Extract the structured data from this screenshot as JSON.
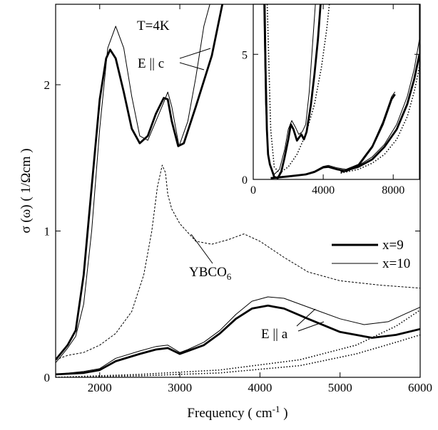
{
  "chart_data": [
    {
      "type": "line",
      "xlabel": "Frequency ( cm",
      "xlabel_sup": "-1",
      "xlabel_close": " )",
      "ylabel": "σ (ω)   ( 1/Ωcm )",
      "xlim": [
        1450,
        6000
      ],
      "ylim": [
        0,
        2.55
      ],
      "x_ticks": [
        2000,
        3000,
        4000,
        5000,
        6000
      ],
      "y_ticks": [
        0,
        1,
        2
      ],
      "grid": false,
      "legend_position": "right",
      "legend": [
        {
          "label": "x=9",
          "style": "thick"
        },
        {
          "label": "x=10",
          "style": "thin"
        }
      ],
      "annotations": {
        "temperature": "T=4K",
        "e_par_c": "E || c",
        "ybco_base": "YBCO",
        "ybco_sub": "6",
        "e_par_a": "E || a"
      },
      "series": [
        {
          "name": "x=9",
          "polarization": "E || c",
          "style": "thick",
          "points": [
            [
              1450,
              0.12
            ],
            [
              1600,
              0.22
            ],
            [
              1700,
              0.32
            ],
            [
              1800,
              0.7
            ],
            [
              1900,
              1.3
            ],
            [
              2000,
              1.9
            ],
            [
              2080,
              2.18
            ],
            [
              2130,
              2.24
            ],
            [
              2200,
              2.18
            ],
            [
              2300,
              1.95
            ],
            [
              2400,
              1.7
            ],
            [
              2500,
              1.6
            ],
            [
              2600,
              1.65
            ],
            [
              2700,
              1.8
            ],
            [
              2800,
              1.91
            ],
            [
              2850,
              1.9
            ],
            [
              2900,
              1.75
            ],
            [
              2980,
              1.58
            ],
            [
              3050,
              1.6
            ],
            [
              3200,
              1.85
            ],
            [
              3400,
              2.2
            ],
            [
              3550,
              2.6
            ]
          ]
        },
        {
          "name": "x=10",
          "polarization": "E || c",
          "style": "thin",
          "points": [
            [
              1450,
              0.1
            ],
            [
              1600,
              0.2
            ],
            [
              1700,
              0.28
            ],
            [
              1800,
              0.5
            ],
            [
              1900,
              1.0
            ],
            [
              2000,
              1.7
            ],
            [
              2100,
              2.25
            ],
            [
              2200,
              2.4
            ],
            [
              2300,
              2.25
            ],
            [
              2400,
              1.92
            ],
            [
              2500,
              1.65
            ],
            [
              2600,
              1.62
            ],
            [
              2700,
              1.75
            ],
            [
              2800,
              1.88
            ],
            [
              2850,
              1.95
            ],
            [
              2900,
              1.85
            ],
            [
              2990,
              1.58
            ],
            [
              3100,
              1.75
            ],
            [
              3200,
              2.05
            ],
            [
              3300,
              2.4
            ],
            [
              3400,
              2.6
            ]
          ]
        },
        {
          "name": "x=9",
          "polarization": "E || a",
          "style": "thick",
          "points": [
            [
              1450,
              0.02
            ],
            [
              1800,
              0.03
            ],
            [
              2000,
              0.05
            ],
            [
              2200,
              0.11
            ],
            [
              2500,
              0.16
            ],
            [
              2700,
              0.19
            ],
            [
              2850,
              0.2
            ],
            [
              3000,
              0.16
            ],
            [
              3100,
              0.18
            ],
            [
              3300,
              0.22
            ],
            [
              3500,
              0.3
            ],
            [
              3700,
              0.4
            ],
            [
              3900,
              0.47
            ],
            [
              4100,
              0.49
            ],
            [
              4300,
              0.47
            ],
            [
              4600,
              0.4
            ],
            [
              5000,
              0.31
            ],
            [
              5400,
              0.27
            ],
            [
              5700,
              0.29
            ],
            [
              6000,
              0.33
            ]
          ]
        },
        {
          "name": "x=10",
          "polarization": "E || a",
          "style": "thin",
          "points": [
            [
              1450,
              0.02
            ],
            [
              1800,
              0.04
            ],
            [
              2000,
              0.06
            ],
            [
              2200,
              0.13
            ],
            [
              2500,
              0.18
            ],
            [
              2700,
              0.21
            ],
            [
              2850,
              0.22
            ],
            [
              3000,
              0.17
            ],
            [
              3100,
              0.19
            ],
            [
              3300,
              0.24
            ],
            [
              3500,
              0.32
            ],
            [
              3700,
              0.43
            ],
            [
              3900,
              0.52
            ],
            [
              4100,
              0.55
            ],
            [
              4300,
              0.54
            ],
            [
              4700,
              0.46
            ],
            [
              5000,
              0.4
            ],
            [
              5300,
              0.36
            ],
            [
              5600,
              0.38
            ],
            [
              5800,
              0.43
            ],
            [
              6000,
              0.48
            ]
          ]
        },
        {
          "name": "YBCO6",
          "style": "dashed",
          "points": [
            [
              1450,
              0.12
            ],
            [
              1600,
              0.15
            ],
            [
              1800,
              0.17
            ],
            [
              2000,
              0.22
            ],
            [
              2200,
              0.3
            ],
            [
              2400,
              0.45
            ],
            [
              2550,
              0.7
            ],
            [
              2650,
              1.0
            ],
            [
              2720,
              1.3
            ],
            [
              2780,
              1.45
            ],
            [
              2820,
              1.4
            ],
            [
              2850,
              1.25
            ],
            [
              2900,
              1.15
            ],
            [
              3000,
              1.05
            ],
            [
              3200,
              0.93
            ],
            [
              3400,
              0.91
            ],
            [
              3600,
              0.94
            ],
            [
              3800,
              0.98
            ],
            [
              4000,
              0.93
            ],
            [
              4300,
              0.82
            ],
            [
              4600,
              0.72
            ],
            [
              5000,
              0.66
            ],
            [
              5500,
              0.63
            ],
            [
              6000,
              0.61
            ]
          ]
        },
        {
          "name": "",
          "style": "dotted",
          "points": [
            [
              1450,
              0.0
            ],
            [
              2500,
              0.02
            ],
            [
              3500,
              0.05
            ],
            [
              4500,
              0.12
            ],
            [
              5200,
              0.22
            ],
            [
              5700,
              0.35
            ],
            [
              6000,
              0.46
            ]
          ]
        },
        {
          "name": "",
          "style": "dotted",
          "points": [
            [
              1450,
              0.0
            ],
            [
              2500,
              0.01
            ],
            [
              3500,
              0.03
            ],
            [
              4500,
              0.08
            ],
            [
              5200,
              0.16
            ],
            [
              5700,
              0.24
            ],
            [
              6000,
              0.29
            ]
          ]
        }
      ]
    },
    {
      "type": "line",
      "title": "",
      "xlim": [
        0,
        9500
      ],
      "ylim": [
        0,
        7
      ],
      "x_ticks": [
        0,
        4000,
        8000
      ],
      "y_ticks": [
        0,
        5
      ],
      "grid": false,
      "series": [
        {
          "name": "",
          "style": "thick",
          "points": [
            [
              650,
              7
            ],
            [
              700,
              4.5
            ],
            [
              780,
              2.0
            ],
            [
              850,
              1.0
            ],
            [
              950,
              0.6
            ],
            [
              1050,
              0.4
            ],
            [
              1200,
              0.1
            ],
            [
              1400,
              0.05
            ],
            [
              1600,
              0.3
            ],
            [
              1800,
              0.9
            ],
            [
              2000,
              1.6
            ],
            [
              2150,
              2.2
            ],
            [
              2300,
              2.0
            ],
            [
              2500,
              1.55
            ],
            [
              2750,
              1.8
            ],
            [
              2900,
              1.6
            ],
            [
              3050,
              1.9
            ],
            [
              3300,
              3.0
            ],
            [
              3500,
              4.2
            ],
            [
              3700,
              5.6
            ],
            [
              3850,
              7
            ]
          ]
        },
        {
          "name": "",
          "style": "thin",
          "points": [
            [
              600,
              7
            ],
            [
              700,
              3.0
            ],
            [
              850,
              0.9
            ],
            [
              1000,
              0.5
            ],
            [
              1200,
              0.2
            ],
            [
              1500,
              0.4
            ],
            [
              1800,
              1.2
            ],
            [
              2000,
              2.0
            ],
            [
              2200,
              2.35
            ],
            [
              2400,
              2.1
            ],
            [
              2600,
              1.8
            ],
            [
              2800,
              1.9
            ],
            [
              3000,
              2.2
            ],
            [
              3200,
              3.5
            ],
            [
              3400,
              5.5
            ],
            [
              3550,
              7
            ]
          ]
        },
        {
          "name": "",
          "style": "dotted",
          "points": [
            [
              800,
              7
            ],
            [
              1000,
              2.0
            ],
            [
              1200,
              0.5
            ],
            [
              1500,
              0.25
            ],
            [
              2000,
              0.5
            ],
            [
              2500,
              1.0
            ],
            [
              3000,
              1.8
            ],
            [
              3500,
              3.0
            ],
            [
              3900,
              4.5
            ],
            [
              4200,
              6.0
            ],
            [
              4350,
              7
            ]
          ]
        },
        {
          "name": "",
          "style": "thick",
          "points": [
            [
              1000,
              0.05
            ],
            [
              2000,
              0.12
            ],
            [
              3000,
              0.2
            ],
            [
              3500,
              0.3
            ],
            [
              4000,
              0.48
            ],
            [
              4300,
              0.5
            ],
            [
              4800,
              0.4
            ],
            [
              5300,
              0.33
            ],
            [
              6000,
              0.55
            ],
            [
              6800,
              1.3
            ],
            [
              7400,
              2.2
            ],
            [
              7900,
              3.2
            ],
            [
              8100,
              3.4
            ]
          ]
        },
        {
          "name": "",
          "style": "thin",
          "points": [
            [
              1000,
              0.05
            ],
            [
              2000,
              0.12
            ],
            [
              3000,
              0.22
            ],
            [
              3500,
              0.33
            ],
            [
              4000,
              0.52
            ],
            [
              4300,
              0.56
            ],
            [
              4800,
              0.46
            ],
            [
              5300,
              0.4
            ],
            [
              6000,
              0.6
            ],
            [
              6800,
              1.35
            ],
            [
              7400,
              2.3
            ],
            [
              7900,
              3.3
            ],
            [
              8100,
              3.5
            ]
          ]
        },
        {
          "name": "",
          "style": "thick",
          "points": [
            [
              5000,
              0.3
            ],
            [
              6000,
              0.5
            ],
            [
              6800,
              0.8
            ],
            [
              7500,
              1.3
            ],
            [
              8200,
              2.0
            ],
            [
              8800,
              3.0
            ],
            [
              9200,
              4.0
            ],
            [
              9500,
              5.0
            ]
          ]
        },
        {
          "name": "",
          "style": "thin",
          "points": [
            [
              5000,
              0.32
            ],
            [
              6000,
              0.55
            ],
            [
              6800,
              0.9
            ],
            [
              7500,
              1.4
            ],
            [
              8200,
              2.2
            ],
            [
              8800,
              3.3
            ],
            [
              9200,
              4.4
            ],
            [
              9500,
              5.6
            ]
          ]
        },
        {
          "name": "",
          "style": "dotted",
          "points": [
            [
              5000,
              0.25
            ],
            [
              6000,
              0.4
            ],
            [
              6800,
              0.65
            ],
            [
              7500,
              1.0
            ],
            [
              8200,
              1.6
            ],
            [
              8800,
              2.5
            ],
            [
              9200,
              3.5
            ],
            [
              9500,
              4.5
            ]
          ]
        }
      ]
    }
  ]
}
